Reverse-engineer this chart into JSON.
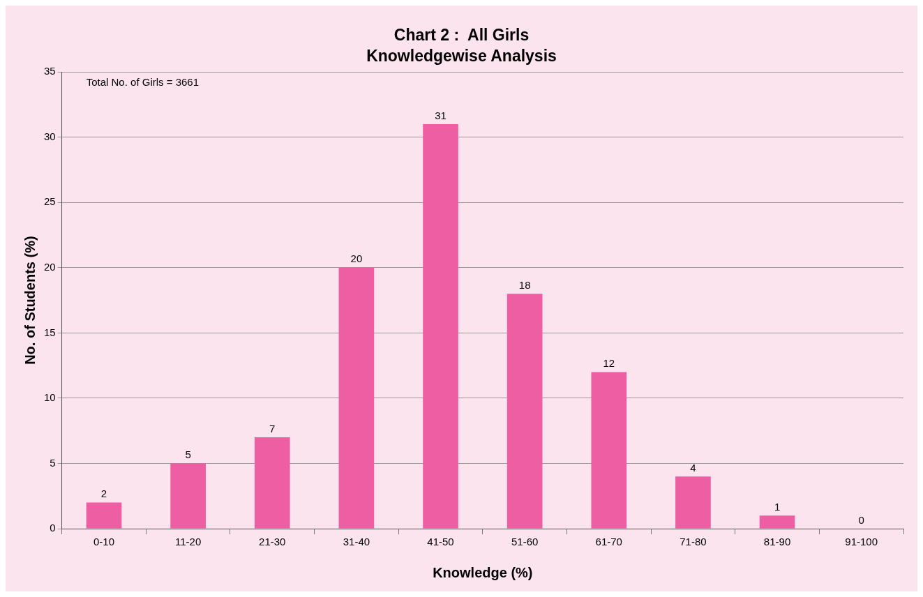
{
  "chart_data": {
    "type": "bar",
    "title": "Chart 2 :  All Girls",
    "subtitle": "Knowledgewise Analysis",
    "xlabel": "Knowledge (%)",
    "ylabel": "No. of Students (%)",
    "annotations": [
      "Total No. of Girls = 3661"
    ],
    "categories": [
      "0-10",
      "11-20",
      "21-30",
      "31-40",
      "41-50",
      "51-60",
      "61-70",
      "71-80",
      "81-90",
      "91-100"
    ],
    "values": [
      2,
      5,
      7,
      20,
      31,
      18,
      12,
      4,
      1,
      0
    ],
    "color": "#ee5ea2",
    "ylim": [
      0,
      35
    ],
    "yticks": [
      0,
      5,
      10,
      15,
      20,
      25,
      30,
      35
    ],
    "grid": "y",
    "data_labels": true,
    "legend": false
  }
}
